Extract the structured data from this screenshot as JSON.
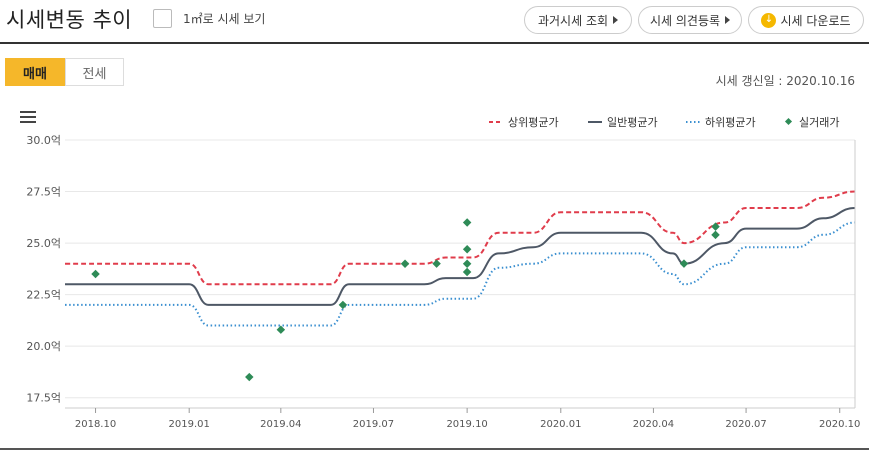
{
  "header": {
    "title": "시세변동 추이",
    "checkbox_label": "1㎡로 시세 보기",
    "buttons": {
      "past_price": "과거시세 조회",
      "opinion": "시세 의견등록",
      "download": "시세 다운로드"
    }
  },
  "tabs": [
    {
      "label": "매매",
      "active": true
    },
    {
      "label": "전세",
      "active": false
    }
  ],
  "update_info": "시세 갱신일 : 2020.10.16",
  "colors": {
    "accent": "#f5b72a",
    "upper": "#e03c4b",
    "general": "#4e5866",
    "lower": "#3a8fd0",
    "trades": "#2e8b57"
  },
  "chart_data": {
    "type": "line",
    "ylim": [
      17.0,
      30.0
    ],
    "yticks": [
      "30.0억",
      "27.5억",
      "25.0억",
      "22.5억",
      "20.0억",
      "17.5억"
    ],
    "ytick_values": [
      30.0,
      27.5,
      25.0,
      22.5,
      20.0,
      17.5
    ],
    "xticks": [
      "2018.10",
      "2019.01",
      "2019.04",
      "2019.07",
      "2019.10",
      "2020.01",
      "2020.04",
      "2020.07",
      "2020.10"
    ],
    "xtick_dates": [
      "2018-10-01",
      "2019-01-01",
      "2019-04-01",
      "2019-07-01",
      "2019-10-01",
      "2020-01-01",
      "2020-04-01",
      "2020-07-01",
      "2020-10-01"
    ],
    "xrange": [
      "2018-09-01",
      "2020-10-16"
    ],
    "legend": [
      "상위평균가",
      "일반평균가",
      "하위평균가",
      "실거래가"
    ],
    "series": [
      {
        "name": "상위평균가",
        "style": "dashed",
        "points": [
          [
            "2018-09-01",
            24.0
          ],
          [
            "2019-01-01",
            24.0
          ],
          [
            "2019-01-20",
            23.0
          ],
          [
            "2019-05-20",
            23.0
          ],
          [
            "2019-06-07",
            24.0
          ],
          [
            "2019-08-20",
            24.0
          ],
          [
            "2019-09-10",
            24.3
          ],
          [
            "2019-10-07",
            24.3
          ],
          [
            "2019-11-01",
            25.5
          ],
          [
            "2019-12-05",
            25.5
          ],
          [
            "2020-01-01",
            26.5
          ],
          [
            "2020-03-20",
            26.5
          ],
          [
            "2020-04-20",
            25.5
          ],
          [
            "2020-05-01",
            25.0
          ],
          [
            "2020-06-10",
            26.0
          ],
          [
            "2020-07-01",
            26.7
          ],
          [
            "2020-08-20",
            26.7
          ],
          [
            "2020-09-15",
            27.2
          ],
          [
            "2020-10-16",
            27.5
          ]
        ]
      },
      {
        "name": "일반평균가",
        "style": "solid",
        "points": [
          [
            "2018-09-01",
            23.0
          ],
          [
            "2019-01-01",
            23.0
          ],
          [
            "2019-01-20",
            22.0
          ],
          [
            "2019-05-20",
            22.0
          ],
          [
            "2019-06-07",
            23.0
          ],
          [
            "2019-08-20",
            23.0
          ],
          [
            "2019-09-10",
            23.3
          ],
          [
            "2019-10-07",
            23.3
          ],
          [
            "2019-11-01",
            24.5
          ],
          [
            "2019-12-05",
            24.8
          ],
          [
            "2020-01-01",
            25.5
          ],
          [
            "2020-03-20",
            25.5
          ],
          [
            "2020-04-20",
            24.5
          ],
          [
            "2020-05-01",
            24.0
          ],
          [
            "2020-06-10",
            25.0
          ],
          [
            "2020-07-01",
            25.7
          ],
          [
            "2020-08-20",
            25.7
          ],
          [
            "2020-09-15",
            26.2
          ],
          [
            "2020-10-16",
            26.7
          ]
        ]
      },
      {
        "name": "하위평균가",
        "style": "dotted",
        "points": [
          [
            "2018-09-01",
            22.0
          ],
          [
            "2019-01-01",
            22.0
          ],
          [
            "2019-01-20",
            21.0
          ],
          [
            "2019-05-20",
            21.0
          ],
          [
            "2019-06-07",
            22.0
          ],
          [
            "2019-08-20",
            22.0
          ],
          [
            "2019-09-10",
            22.3
          ],
          [
            "2019-10-07",
            22.3
          ],
          [
            "2019-11-01",
            23.8
          ],
          [
            "2019-12-05",
            24.0
          ],
          [
            "2020-01-01",
            24.5
          ],
          [
            "2020-03-20",
            24.5
          ],
          [
            "2020-04-20",
            23.5
          ],
          [
            "2020-05-01",
            23.0
          ],
          [
            "2020-06-10",
            24.0
          ],
          [
            "2020-07-01",
            24.8
          ],
          [
            "2020-08-20",
            24.8
          ],
          [
            "2020-09-15",
            25.4
          ],
          [
            "2020-10-16",
            26.0
          ]
        ]
      }
    ],
    "trades": [
      [
        "2018-10-01",
        23.5
      ],
      [
        "2019-03-01",
        18.5
      ],
      [
        "2019-04-01",
        20.8
      ],
      [
        "2019-06-01",
        22.0
      ],
      [
        "2019-08-01",
        24.0
      ],
      [
        "2019-09-01",
        24.0
      ],
      [
        "2019-10-01",
        26.0
      ],
      [
        "2019-10-01",
        24.7
      ],
      [
        "2019-10-01",
        24.0
      ],
      [
        "2019-10-01",
        23.6
      ],
      [
        "2020-05-01",
        24.0
      ],
      [
        "2020-06-01",
        25.8
      ],
      [
        "2020-06-01",
        25.4
      ]
    ]
  }
}
